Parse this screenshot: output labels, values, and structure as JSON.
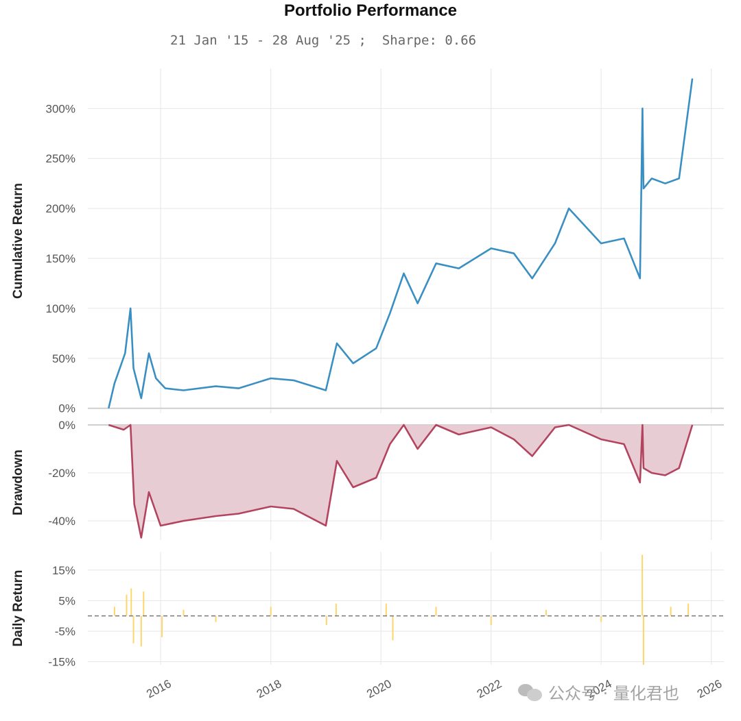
{
  "title": "Portfolio Performance",
  "subtitle": "21 Jan '15 - 28 Aug '25 ;  Sharpe: 0.66",
  "watermark": "公众号 · 量化君也",
  "colors": {
    "cumulative": "#3a8fc2",
    "drawdown_line": "#b3445f",
    "drawdown_fill": "#e8ccd3",
    "daily": "#fcd66b",
    "grid": "#e6e6e6"
  },
  "chart_data": [
    {
      "type": "line",
      "ylabel": "Cumulative Return",
      "yticks": [
        "300%",
        "250%",
        "200%",
        "150%",
        "100%",
        "50%",
        "0%"
      ],
      "ytick_values": [
        300,
        250,
        200,
        150,
        100,
        50,
        0
      ],
      "ylim": [
        -5,
        340
      ],
      "x": [
        "2015-01-21",
        "2015-03-01",
        "2015-05-10",
        "2015-06-15",
        "2015-07-05",
        "2015-08-25",
        "2015-10-15",
        "2015-12-01",
        "2016-02-01",
        "2016-06-01",
        "2017-01-01",
        "2017-06-01",
        "2018-01-01",
        "2018-06-01",
        "2019-01-01",
        "2019-03-15",
        "2019-07-01",
        "2019-12-01",
        "2020-03-01",
        "2020-06-01",
        "2020-09-01",
        "2021-01-01",
        "2021-06-01",
        "2022-01-01",
        "2022-06-01",
        "2022-10-01",
        "2023-03-01",
        "2023-06-01",
        "2024-01-01",
        "2024-06-01",
        "2024-09-15",
        "2024-10-01",
        "2024-10-08",
        "2024-12-01",
        "2025-03-01",
        "2025-06-01",
        "2025-08-28"
      ],
      "y": [
        0,
        25,
        55,
        100,
        40,
        10,
        55,
        30,
        20,
        18,
        22,
        20,
        30,
        28,
        18,
        65,
        45,
        60,
        95,
        135,
        105,
        145,
        140,
        160,
        155,
        130,
        165,
        200,
        165,
        170,
        130,
        300,
        220,
        230,
        225,
        230,
        330
      ]
    },
    {
      "type": "area",
      "ylabel": "Drawdown",
      "yticks": [
        "0%",
        "-20%",
        "-40%"
      ],
      "ytick_values": [
        0,
        -20,
        -40
      ],
      "ylim": [
        -48,
        0
      ],
      "x": [
        "2015-01-21",
        "2015-05-01",
        "2015-06-15",
        "2015-07-10",
        "2015-08-25",
        "2015-10-15",
        "2016-01-01",
        "2016-06-01",
        "2017-01-01",
        "2017-06-01",
        "2018-01-01",
        "2018-06-01",
        "2019-01-01",
        "2019-03-15",
        "2019-07-01",
        "2019-12-01",
        "2020-03-01",
        "2020-06-01",
        "2020-09-01",
        "2021-01-01",
        "2021-06-01",
        "2022-01-01",
        "2022-06-01",
        "2022-10-01",
        "2023-03-01",
        "2023-06-01",
        "2024-01-01",
        "2024-06-01",
        "2024-09-15",
        "2024-10-01",
        "2024-10-08",
        "2024-12-01",
        "2025-03-01",
        "2025-06-01",
        "2025-08-28"
      ],
      "y": [
        0,
        -2,
        0,
        -33,
        -47,
        -28,
        -42,
        -40,
        -38,
        -37,
        -34,
        -35,
        -42,
        -15,
        -26,
        -22,
        -8,
        0,
        -10,
        0,
        -4,
        -1,
        -6,
        -13,
        -1,
        0,
        -6,
        -8,
        -24,
        0,
        -18,
        -20,
        -21,
        -18,
        0
      ]
    },
    {
      "type": "bar",
      "ylabel": "Daily Return",
      "yticks": [
        "15%",
        "5%",
        "-5%",
        "-15%"
      ],
      "ytick_values": [
        15,
        5,
        -5,
        -15
      ],
      "ylim": [
        -16,
        21
      ],
      "baseline": 0,
      "xticks": [
        "2016",
        "2018",
        "2020",
        "2022",
        "2024",
        "2026"
      ],
      "x": [
        "2015-03-01",
        "2015-05-20",
        "2015-06-20",
        "2015-07-05",
        "2015-08-25",
        "2015-09-10",
        "2016-01-10",
        "2016-06-01",
        "2017-01-01",
        "2018-01-01",
        "2019-01-05",
        "2019-03-10",
        "2020-02-05",
        "2020-03-20",
        "2021-01-01",
        "2022-01-01",
        "2023-01-01",
        "2024-01-01",
        "2024-09-30",
        "2024-10-08",
        "2025-04-07",
        "2025-08-01"
      ],
      "y": [
        3,
        7,
        9,
        -9,
        -10,
        8,
        -7,
        2,
        -2,
        3,
        -3,
        4,
        4,
        -8,
        3,
        -3,
        2,
        -2,
        20,
        -16,
        3,
        4
      ]
    }
  ]
}
